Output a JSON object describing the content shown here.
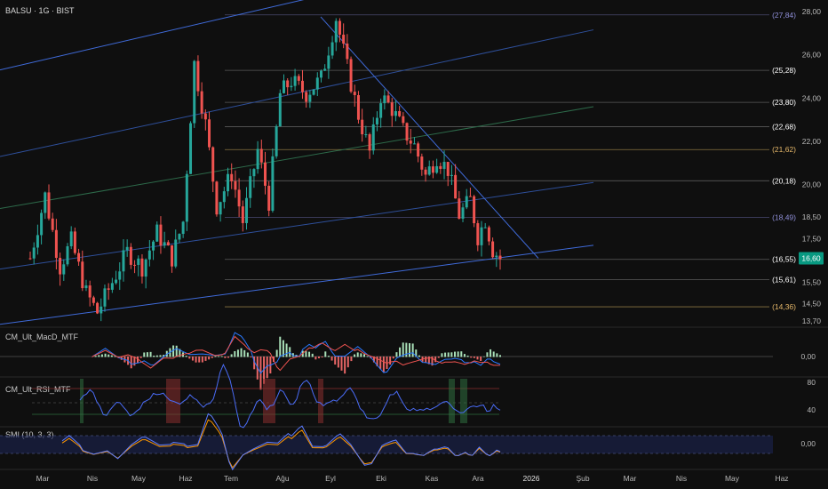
{
  "header": {
    "symbol": "BALSU",
    "interval": "1G",
    "exchange": "BIST",
    "title": "BALSU · 1G · BIST"
  },
  "colors": {
    "bg": "#0f0f0f",
    "up": "#26a69a",
    "down": "#ef5350",
    "channel": "#3f6ad8",
    "fib": "#9e9e9e",
    "last_bg": "#089981"
  },
  "chart_data": [
    {
      "type": "candlestick",
      "panel": "price",
      "y_ticks": [
        "28,00",
        "26,00",
        "24,00",
        "22,00",
        "20,00",
        "18,50",
        "17,50",
        "16,60",
        "15,50",
        "14,50",
        "13,70"
      ],
      "ylim": [
        13.5,
        28.2
      ],
      "last_price": "16,60",
      "level_labels": [
        {
          "text": "(27,84)",
          "value": 27.84,
          "color": "#8f8fd8"
        },
        {
          "text": "(25,28)",
          "value": 25.28,
          "color": "#ffffff"
        },
        {
          "text": "(23,80)",
          "value": 23.8,
          "color": "#ffffff"
        },
        {
          "text": "(22,68)",
          "value": 22.68,
          "color": "#ffffff"
        },
        {
          "text": "(21,62)",
          "value": 21.62,
          "color": "#e6b86a"
        },
        {
          "text": "(20,18)",
          "value": 20.18,
          "color": "#ffffff"
        },
        {
          "text": "(18,49)",
          "value": 18.49,
          "color": "#8f8fd8"
        },
        {
          "text": "(16,55)",
          "value": 16.55,
          "color": "#ffffff"
        },
        {
          "text": "(15,61)",
          "value": 15.61,
          "color": "#ffffff"
        },
        {
          "text": "(14,36)",
          "value": 14.36,
          "color": "#e6b86a"
        }
      ],
      "x_ticks": [
        "Mar",
        "Nis",
        "May",
        "Haz",
        "Tem",
        "Ağu",
        "Eyl",
        "Eki",
        "Kas",
        "Ara",
        "2026",
        "Şub",
        "Mar",
        "Nis",
        "May",
        "Haz"
      ],
      "swing_points": [
        {
          "x": 0,
          "y": 16.6
        },
        {
          "x": 4,
          "y": 19.5
        },
        {
          "x": 8,
          "y": 16.2
        },
        {
          "x": 11,
          "y": 17.4
        },
        {
          "x": 15,
          "y": 15.0
        },
        {
          "x": 18,
          "y": 14.1
        },
        {
          "x": 22,
          "y": 15.5
        },
        {
          "x": 26,
          "y": 16.9
        },
        {
          "x": 30,
          "y": 16.2
        },
        {
          "x": 34,
          "y": 17.8
        },
        {
          "x": 38,
          "y": 16.6
        },
        {
          "x": 41,
          "y": 18.3
        },
        {
          "x": 44,
          "y": 25.6
        },
        {
          "x": 47,
          "y": 22.8
        },
        {
          "x": 50,
          "y": 19.0
        },
        {
          "x": 54,
          "y": 20.5
        },
        {
          "x": 57,
          "y": 18.3
        },
        {
          "x": 61,
          "y": 21.6
        },
        {
          "x": 64,
          "y": 19.2
        },
        {
          "x": 67,
          "y": 24.2
        },
        {
          "x": 70,
          "y": 24.8
        },
        {
          "x": 74,
          "y": 24.2
        },
        {
          "x": 78,
          "y": 24.9
        },
        {
          "x": 82,
          "y": 27.7
        },
        {
          "x": 85,
          "y": 25.4
        },
        {
          "x": 88,
          "y": 23.2
        },
        {
          "x": 91,
          "y": 21.5
        },
        {
          "x": 94,
          "y": 24.1
        },
        {
          "x": 97,
          "y": 23.5
        },
        {
          "x": 100,
          "y": 22.5
        },
        {
          "x": 103,
          "y": 21.8
        },
        {
          "x": 106,
          "y": 20.4
        },
        {
          "x": 109,
          "y": 21.3
        },
        {
          "x": 112,
          "y": 20.7
        },
        {
          "x": 115,
          "y": 18.6
        },
        {
          "x": 118,
          "y": 19.3
        },
        {
          "x": 120,
          "y": 17.6
        },
        {
          "x": 122,
          "y": 18.4
        },
        {
          "x": 124,
          "y": 17.0
        },
        {
          "x": 126,
          "y": 16.6
        }
      ]
    },
    {
      "type": "line",
      "panel": "macd",
      "title": "CM_Ult_MacD_MTF",
      "y_ticks": [
        "0,00"
      ]
    },
    {
      "type": "line",
      "panel": "rsi",
      "title": "CM_Ult_RSI_MTF",
      "y_ticks": [
        "80",
        "40"
      ]
    },
    {
      "type": "line",
      "panel": "smi",
      "title": "SMI (10, 3, 3)",
      "y_ticks": [
        "0,00"
      ]
    }
  ]
}
